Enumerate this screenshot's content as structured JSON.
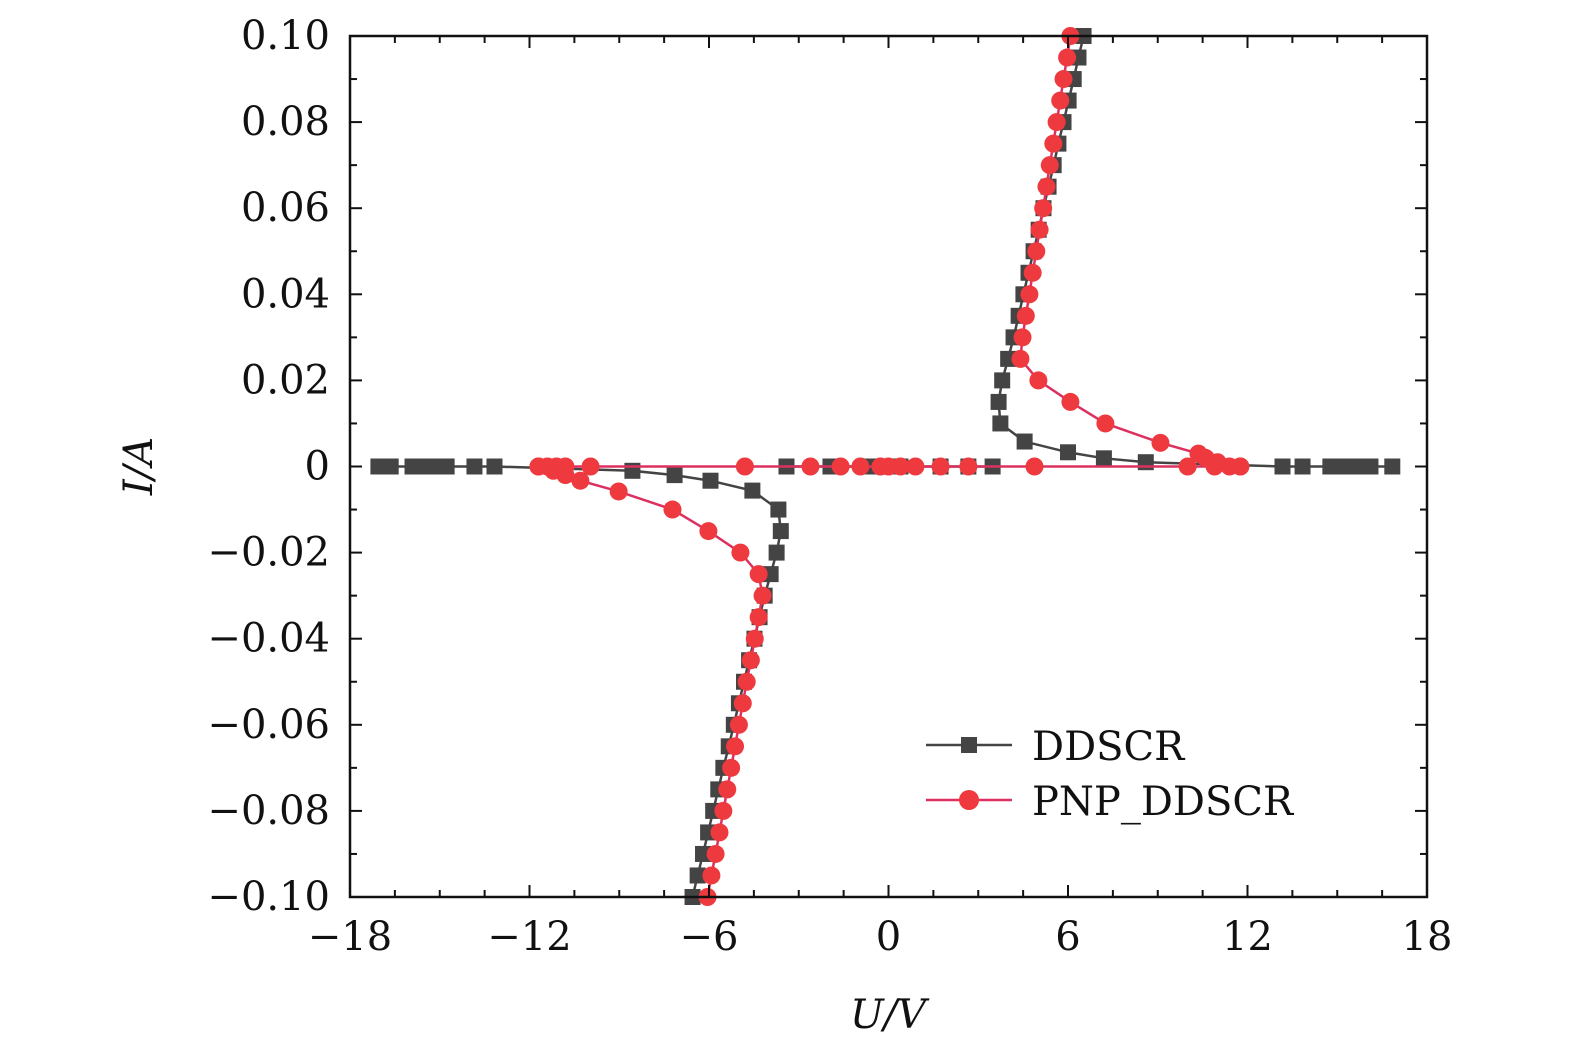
{
  "chart_data": {
    "type": "line",
    "title": "",
    "xlabel": "U/V",
    "ylabel": "I/A",
    "xlim": [
      -18,
      18
    ],
    "ylim": [
      -0.1,
      0.1
    ],
    "xticks": [
      -18,
      -12,
      -6,
      0,
      6,
      12,
      18
    ],
    "xtick_labels": [
      "−18",
      "−12",
      "−6",
      "0",
      "6",
      "12",
      "18"
    ],
    "yticks": [
      0.1,
      0.08,
      0.06,
      0.04,
      0.02,
      0,
      -0.02,
      -0.04,
      -0.06,
      -0.08,
      -0.1
    ],
    "ytick_labels": [
      "0.10",
      "0.08",
      "0.06",
      "0.04",
      "0.02",
      "0",
      "−0.02",
      "−0.04",
      "−0.06",
      "−0.08",
      "−0.10"
    ],
    "grid": false,
    "legend_position": "bottom-right",
    "series": [
      {
        "name": "DDSCR",
        "color": "#444444",
        "marker": "square",
        "branches": [
          [
            [
              -6.55,
              -0.1
            ],
            [
              -6.38,
              -0.095
            ],
            [
              -6.2,
              -0.09
            ],
            [
              -6.03,
              -0.085
            ],
            [
              -5.86,
              -0.08
            ],
            [
              -5.69,
              -0.075
            ],
            [
              -5.52,
              -0.07
            ],
            [
              -5.34,
              -0.065
            ],
            [
              -5.17,
              -0.06
            ],
            [
              -5.0,
              -0.055
            ],
            [
              -4.83,
              -0.05
            ],
            [
              -4.66,
              -0.045
            ],
            [
              -4.48,
              -0.04
            ],
            [
              -4.31,
              -0.035
            ],
            [
              -4.14,
              -0.03
            ],
            [
              -3.94,
              -0.025
            ],
            [
              -3.74,
              -0.02
            ],
            [
              -3.6,
              -0.015
            ],
            [
              -3.68,
              -0.01
            ],
            [
              -4.55,
              -0.0056
            ],
            [
              -5.95,
              -0.0033
            ],
            [
              -7.15,
              -0.002
            ],
            [
              -8.56,
              -0.001
            ],
            [
              -13.17,
              0
            ],
            [
              -13.84,
              0
            ],
            [
              -14.77,
              0
            ],
            [
              -15.24,
              0
            ],
            [
              -15.64,
              0
            ],
            [
              -15.91,
              0
            ],
            [
              -16.64,
              0
            ],
            [
              -17.05,
              0
            ]
          ],
          [
            [
              -3.41,
              0
            ],
            [
              -1.94,
              0
            ],
            [
              -0.6,
              0
            ],
            [
              0.4,
              0
            ],
            [
              1.74,
              0
            ],
            [
              2.67,
              0
            ],
            [
              3.48,
              0
            ]
          ],
          [
            [
              6.52,
              0.1
            ],
            [
              6.35,
              0.095
            ],
            [
              6.19,
              0.09
            ],
            [
              6.02,
              0.085
            ],
            [
              5.85,
              0.08
            ],
            [
              5.68,
              0.075
            ],
            [
              5.52,
              0.07
            ],
            [
              5.35,
              0.065
            ],
            [
              5.18,
              0.06
            ],
            [
              5.02,
              0.055
            ],
            [
              4.85,
              0.05
            ],
            [
              4.68,
              0.045
            ],
            [
              4.51,
              0.04
            ],
            [
              4.35,
              0.035
            ],
            [
              4.18,
              0.03
            ],
            [
              4.0,
              0.025
            ],
            [
              3.8,
              0.02
            ],
            [
              3.68,
              0.015
            ],
            [
              3.74,
              0.01
            ],
            [
              4.55,
              0.0058
            ],
            [
              6.0,
              0.0033
            ],
            [
              7.2,
              0.0019
            ],
            [
              8.6,
              0.001
            ],
            [
              13.17,
              0
            ],
            [
              13.84,
              0
            ],
            [
              14.77,
              0
            ],
            [
              15.27,
              0
            ],
            [
              15.71,
              0
            ],
            [
              16.11,
              0
            ],
            [
              16.84,
              0
            ]
          ]
        ]
      },
      {
        "name": "PNP_DDSCR",
        "color": "#ee3a3f",
        "line_color": "#dd3060",
        "marker": "circle",
        "branches": [
          [
            [
              -6.05,
              -0.1
            ],
            [
              -5.92,
              -0.095
            ],
            [
              -5.78,
              -0.09
            ],
            [
              -5.65,
              -0.085
            ],
            [
              -5.52,
              -0.08
            ],
            [
              -5.39,
              -0.075
            ],
            [
              -5.26,
              -0.07
            ],
            [
              -5.13,
              -0.065
            ],
            [
              -5.0,
              -0.06
            ],
            [
              -4.87,
              -0.055
            ],
            [
              -4.74,
              -0.05
            ],
            [
              -4.6,
              -0.045
            ],
            [
              -4.47,
              -0.04
            ],
            [
              -4.34,
              -0.035
            ],
            [
              -4.21,
              -0.03
            ],
            [
              -4.34,
              -0.025
            ],
            [
              -4.95,
              -0.02
            ],
            [
              -6.02,
              -0.015
            ],
            [
              -7.22,
              -0.01
            ],
            [
              -9.02,
              -0.0058
            ],
            [
              -10.3,
              -0.0033
            ],
            [
              -10.8,
              -0.002
            ],
            [
              -11.2,
              -0.001
            ],
            [
              -11.7,
              0
            ]
          ],
          [
            [
              -11.7,
              0
            ],
            [
              -11.4,
              0
            ],
            [
              -11.1,
              0
            ],
            [
              -10.8,
              0
            ],
            [
              -9.96,
              0
            ],
            [
              -4.8,
              0
            ],
            [
              -2.61,
              0
            ],
            [
              -1.6,
              0
            ],
            [
              -0.94,
              0
            ],
            [
              -0.27,
              0
            ],
            [
              0,
              0
            ],
            [
              0.4,
              0
            ],
            [
              0.9,
              0
            ],
            [
              1.74,
              0
            ],
            [
              2.67,
              0
            ],
            [
              4.88,
              0
            ],
            [
              10.0,
              0
            ],
            [
              10.9,
              0
            ],
            [
              11.4,
              0
            ],
            [
              11.76,
              0
            ]
          ],
          [
            [
              6.08,
              0.1
            ],
            [
              5.97,
              0.095
            ],
            [
              5.85,
              0.09
            ],
            [
              5.74,
              0.085
            ],
            [
              5.62,
              0.08
            ],
            [
              5.51,
              0.075
            ],
            [
              5.39,
              0.07
            ],
            [
              5.28,
              0.065
            ],
            [
              5.17,
              0.06
            ],
            [
              5.05,
              0.055
            ],
            [
              4.94,
              0.05
            ],
            [
              4.82,
              0.045
            ],
            [
              4.71,
              0.04
            ],
            [
              4.59,
              0.035
            ],
            [
              4.48,
              0.03
            ],
            [
              4.41,
              0.025
            ],
            [
              5.01,
              0.02
            ],
            [
              6.08,
              0.015
            ],
            [
              7.25,
              0.01
            ],
            [
              9.09,
              0.0055
            ],
            [
              10.36,
              0.003
            ],
            [
              10.6,
              0.002
            ],
            [
              11.0,
              0.001
            ],
            [
              11.76,
              0
            ]
          ]
        ]
      }
    ]
  }
}
